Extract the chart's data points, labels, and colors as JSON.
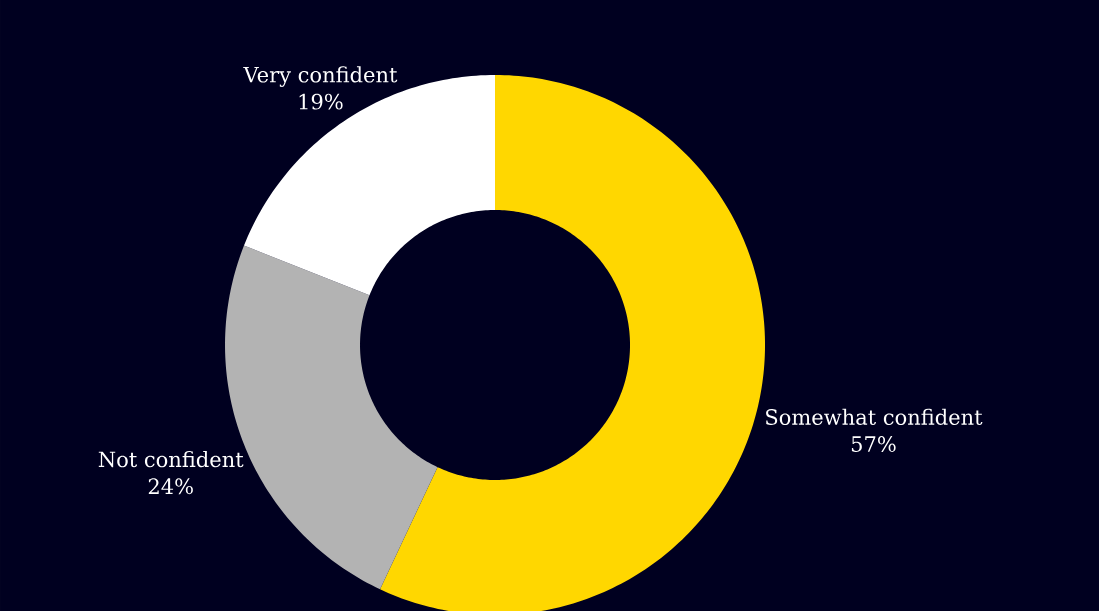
{
  "chart_data": {
    "type": "donut",
    "categories": [
      "Somewhat confident",
      "Not confident",
      "Very confident"
    ],
    "values": [
      57,
      24,
      19
    ],
    "colors": [
      "#ffd700",
      "#b3b3b3",
      "#ffffff"
    ],
    "value_labels": [
      "57%",
      "24%",
      "19%"
    ]
  }
}
